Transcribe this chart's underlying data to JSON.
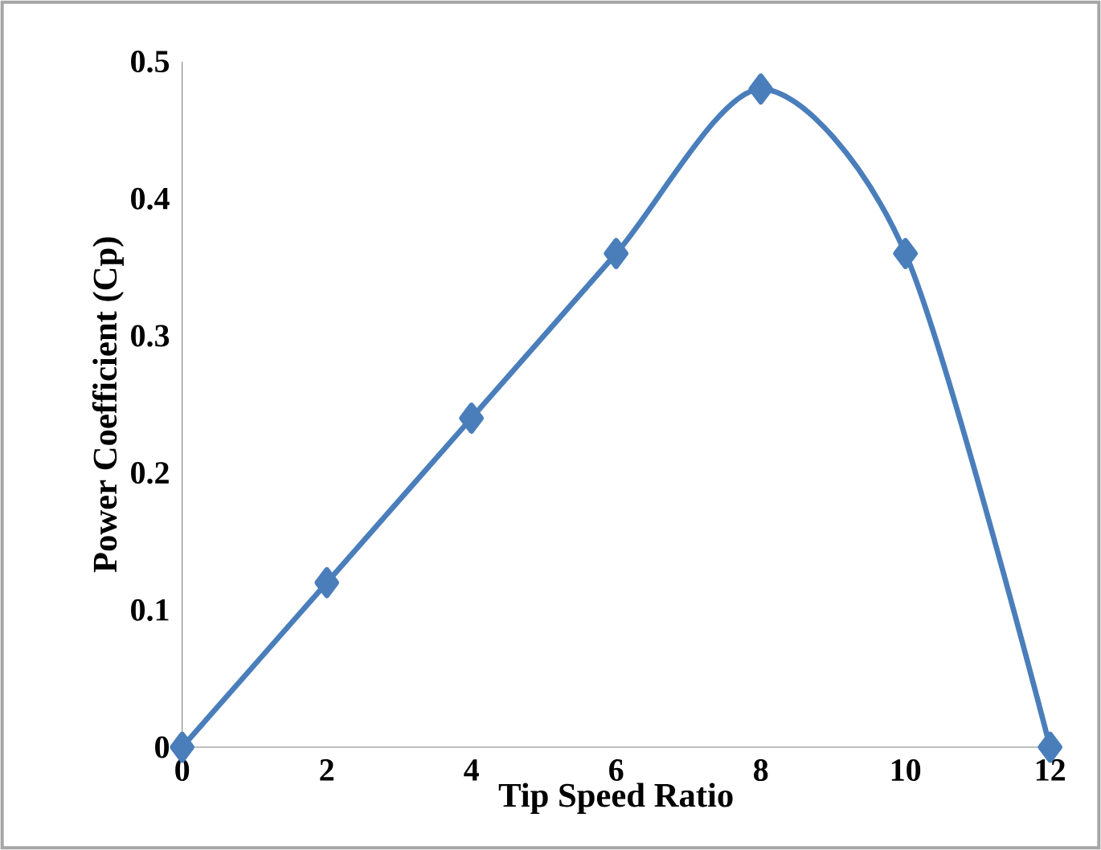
{
  "chart_data": {
    "type": "line",
    "xlabel": "Tip Speed Ratio",
    "ylabel": "Power Coefficient (Cp)",
    "x": [
      0,
      2,
      4,
      6,
      8,
      10,
      12
    ],
    "series": [
      {
        "color": "#4a7ebb",
        "values": [
          0,
          0.12,
          0.24,
          0.36,
          0.48,
          0.36,
          0
        ]
      }
    ],
    "xlim": [
      0,
      12
    ],
    "ylim": [
      0,
      0.5
    ],
    "xticks": [
      0,
      2,
      4,
      6,
      8,
      10,
      12
    ],
    "yticks": [
      0,
      0.1,
      0.2,
      0.3,
      0.4,
      0.5
    ],
    "marker": "diamond",
    "line_style": "solid"
  }
}
